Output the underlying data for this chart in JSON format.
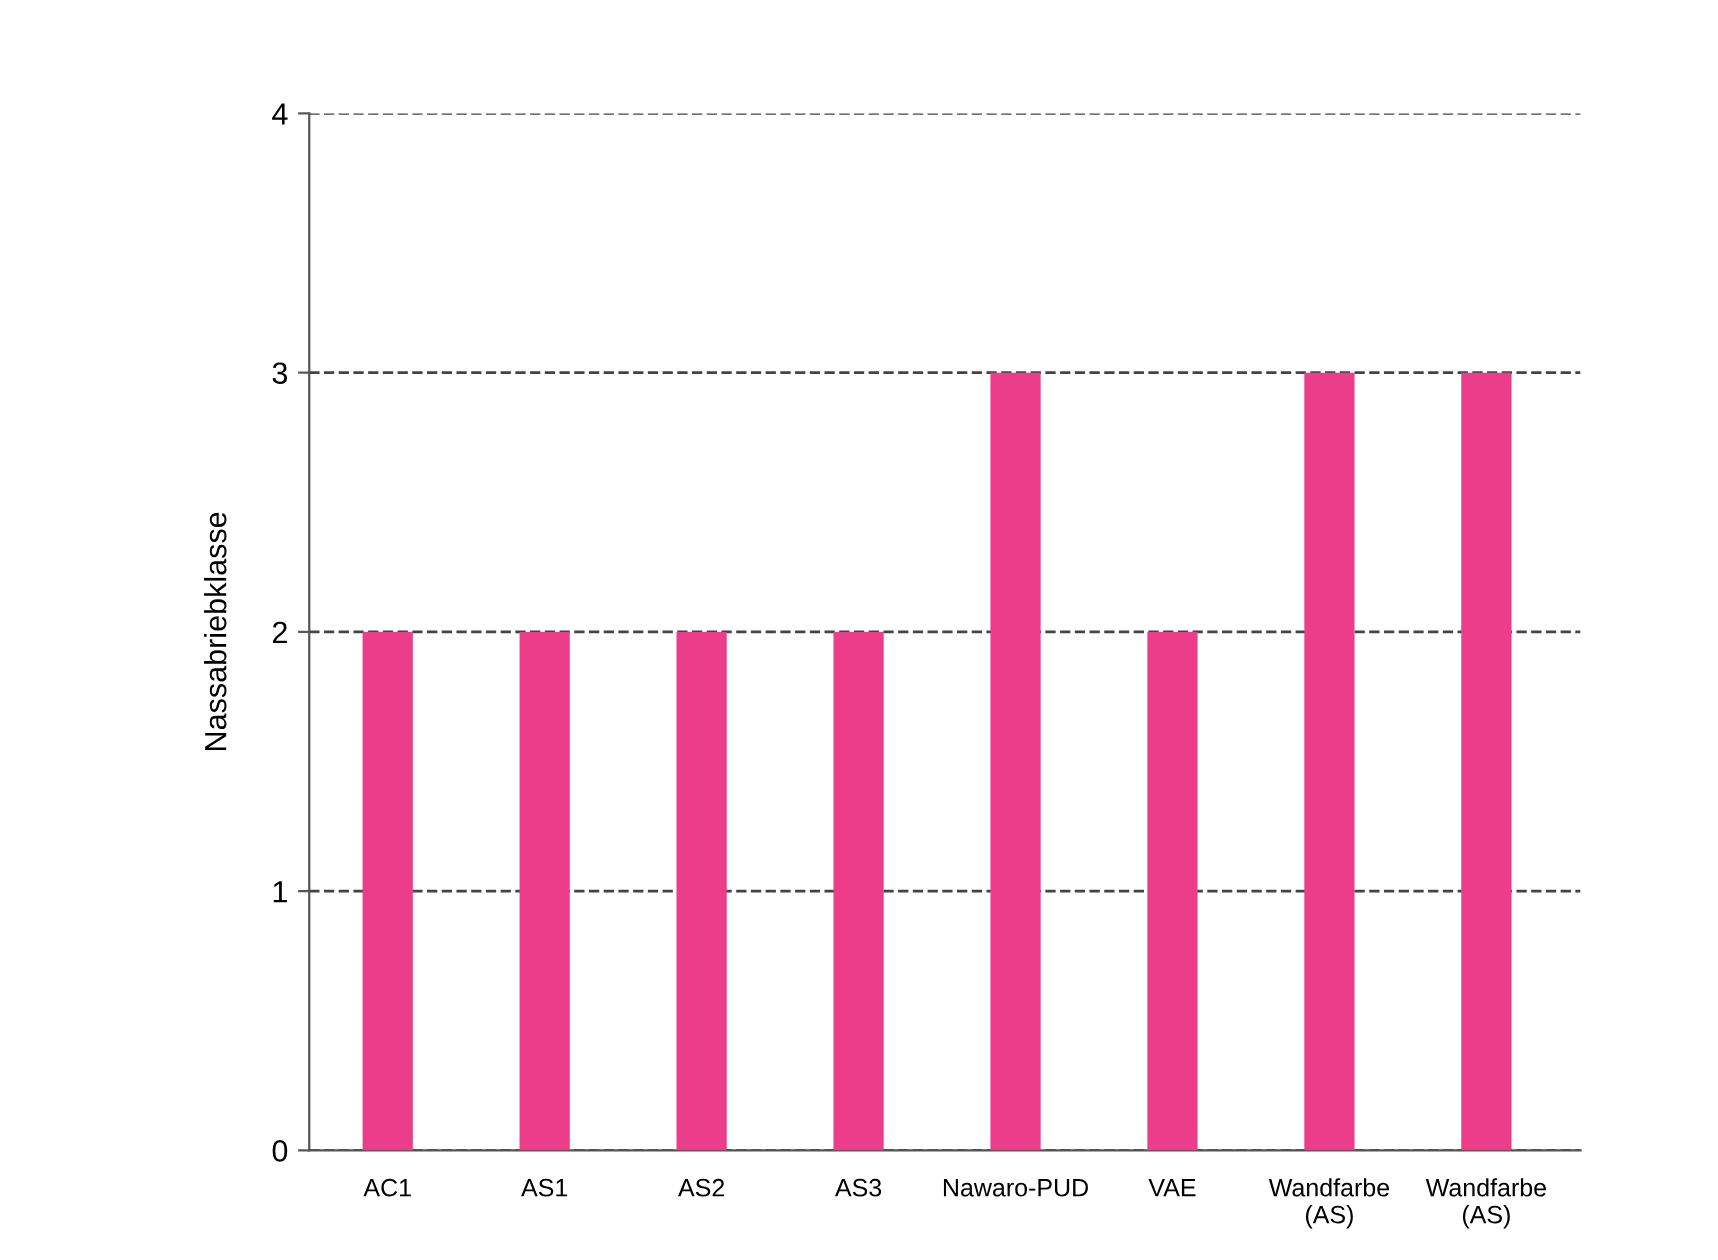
{
  "chart_data": {
    "type": "bar",
    "ylabel": "Nassabriebklasse",
    "categories": [
      "AC1",
      "AS1",
      "AS2",
      "AS3",
      "Nawaro-PUD",
      "VAE",
      "Wandfarbe\n(AS)",
      "Wandfarbe\n(AS)"
    ],
    "values": [
      2,
      2,
      2,
      2,
      3,
      2,
      3,
      3
    ],
    "color": "#ec3d8a",
    "ylim": [
      0,
      4
    ],
    "yticks": [
      0,
      1,
      2,
      3,
      4
    ],
    "grid": "y",
    "line_style": "dashed"
  }
}
